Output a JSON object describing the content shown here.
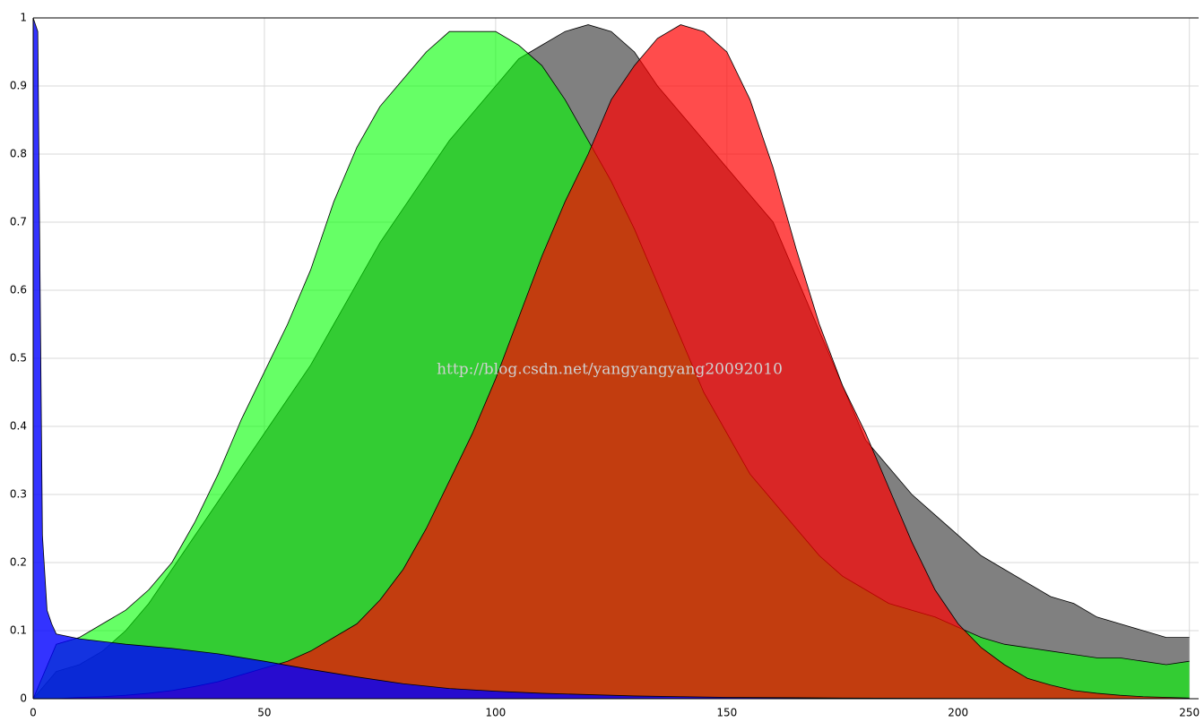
{
  "chart_data": {
    "type": "area",
    "annotation": "http://blog.csdn.net/yangyangyang20092010",
    "x": [
      0,
      5,
      10,
      15,
      20,
      25,
      30,
      35,
      40,
      45,
      50,
      55,
      60,
      65,
      70,
      75,
      80,
      85,
      90,
      95,
      100,
      105,
      110,
      115,
      120,
      125,
      130,
      135,
      140,
      145,
      150,
      155,
      160,
      165,
      170,
      175,
      180,
      185,
      190,
      195,
      200,
      205,
      210,
      215,
      220,
      225,
      230,
      235,
      240,
      245,
      250
    ],
    "xlim": [
      0,
      252
    ],
    "ylim": [
      0,
      1
    ],
    "xticks": [
      0,
      50,
      100,
      150,
      200,
      250
    ],
    "yticks": [
      0,
      0.1,
      0.2,
      0.3,
      0.4,
      0.5,
      0.6,
      0.7,
      0.8,
      0.9,
      1
    ],
    "grid": true,
    "series": [
      {
        "color": "#808080",
        "opacity": 1,
        "values": [
          0,
          0.04,
          0.05,
          0.07,
          0.1,
          0.14,
          0.19,
          0.24,
          0.29,
          0.34,
          0.39,
          0.44,
          0.49,
          0.55,
          0.61,
          0.67,
          0.72,
          0.77,
          0.82,
          0.86,
          0.9,
          0.94,
          0.96,
          0.98,
          0.99,
          0.98,
          0.95,
          0.9,
          0.86,
          0.82,
          0.78,
          0.74,
          0.7,
          0.62,
          0.54,
          0.46,
          0.38,
          0.34,
          0.3,
          0.27,
          0.24,
          0.21,
          0.19,
          0.17,
          0.15,
          0.14,
          0.12,
          0.11,
          0.1,
          0.09,
          0.09
        ]
      },
      {
        "color": "#00ff00",
        "opacity": 0.6,
        "values": [
          0,
          0.08,
          0.09,
          0.11,
          0.13,
          0.16,
          0.2,
          0.26,
          0.33,
          0.41,
          0.48,
          0.55,
          0.63,
          0.73,
          0.81,
          0.87,
          0.91,
          0.95,
          0.98,
          0.98,
          0.98,
          0.96,
          0.93,
          0.88,
          0.82,
          0.76,
          0.69,
          0.61,
          0.53,
          0.45,
          0.39,
          0.33,
          0.29,
          0.25,
          0.21,
          0.18,
          0.16,
          0.14,
          0.13,
          0.12,
          0.105,
          0.09,
          0.08,
          0.075,
          0.07,
          0.065,
          0.06,
          0.06,
          0.055,
          0.05,
          0.055
        ]
      },
      {
        "color": "#ff0000",
        "opacity": 0.7,
        "values": [
          0,
          0,
          0.002,
          0.003,
          0.005,
          0.008,
          0.012,
          0.018,
          0.025,
          0.035,
          0.045,
          0.055,
          0.07,
          0.09,
          0.11,
          0.145,
          0.19,
          0.25,
          0.32,
          0.39,
          0.47,
          0.56,
          0.65,
          0.73,
          0.8,
          0.88,
          0.93,
          0.97,
          0.99,
          0.98,
          0.95,
          0.88,
          0.78,
          0.66,
          0.55,
          0.46,
          0.39,
          0.31,
          0.23,
          0.16,
          0.11,
          0.075,
          0.05,
          0.03,
          0.02,
          0.012,
          0.008,
          0.005,
          0.003,
          0.002,
          0.001
        ]
      },
      {
        "color": "#0000ff",
        "opacity": 0.8,
        "x": [
          0,
          1,
          2,
          3,
          4,
          5,
          10,
          20,
          30,
          40,
          50,
          60,
          70,
          80,
          90,
          100,
          110,
          120,
          130,
          140,
          150,
          175,
          200,
          250
        ],
        "values": [
          1,
          0.98,
          0.24,
          0.13,
          0.11,
          0.095,
          0.088,
          0.08,
          0.074,
          0.066,
          0.055,
          0.043,
          0.032,
          0.022,
          0.015,
          0.011,
          0.008,
          0.006,
          0.004,
          0.003,
          0.002,
          0.001,
          0.0005,
          0
        ]
      }
    ]
  }
}
